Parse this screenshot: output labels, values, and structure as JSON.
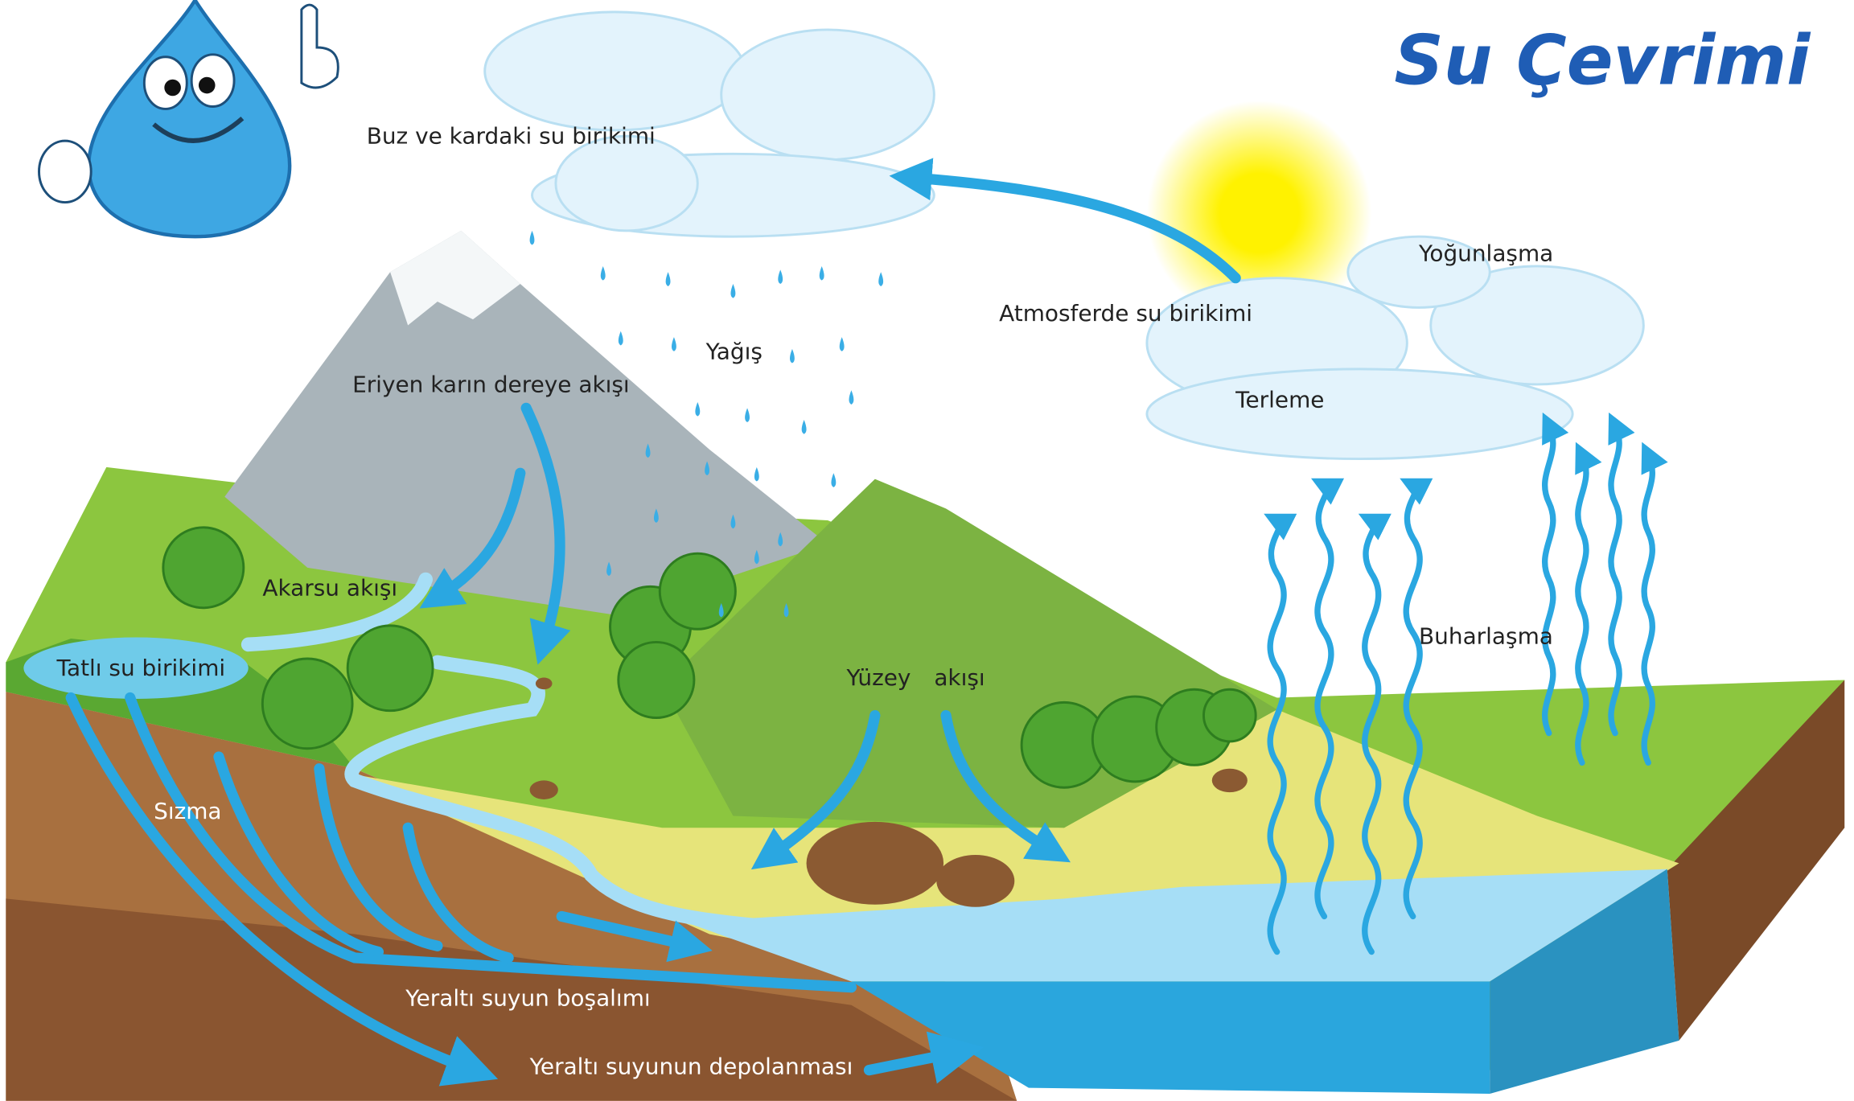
{
  "title": "Su Çevrimi",
  "labels": [
    "Buz ve kardaki su birikimi",
    "Atmosferde su birikimi",
    "Yoğunlaşma",
    "Yağış",
    "Eriyen karın dereye akışı",
    "Terleme",
    "Akarsu akışı",
    "Buharlaşma",
    "Tatlı su birikimi",
    "Yüzey",
    "akışı",
    "Sızma",
    "Yeraltı suyun boşalımı",
    "Yeraltı suyunun depolanması"
  ]
}
